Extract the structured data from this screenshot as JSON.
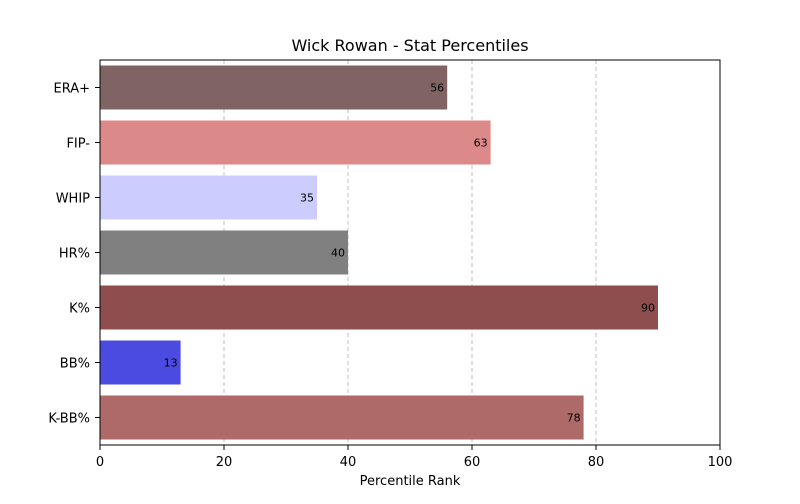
{
  "chart_data": {
    "type": "bar",
    "orientation": "horizontal",
    "title": "Wick Rowan - Stat Percentiles",
    "xlabel": "Percentile Rank",
    "ylabel": "",
    "xlim": [
      0,
      100
    ],
    "xticks": [
      0,
      20,
      40,
      60,
      80,
      100
    ],
    "grid": "x-dashed",
    "categories": [
      "ERA+",
      "FIP-",
      "WHIP",
      "HR%",
      "K%",
      "BB%",
      "K-BB%"
    ],
    "values": [
      56,
      63,
      35,
      40,
      90,
      13,
      78
    ],
    "colors": [
      "#806464",
      "#dc8a89",
      "#ccccff",
      "#808080",
      "#8f4e4e",
      "#4b4be1",
      "#ad6a69"
    ]
  }
}
